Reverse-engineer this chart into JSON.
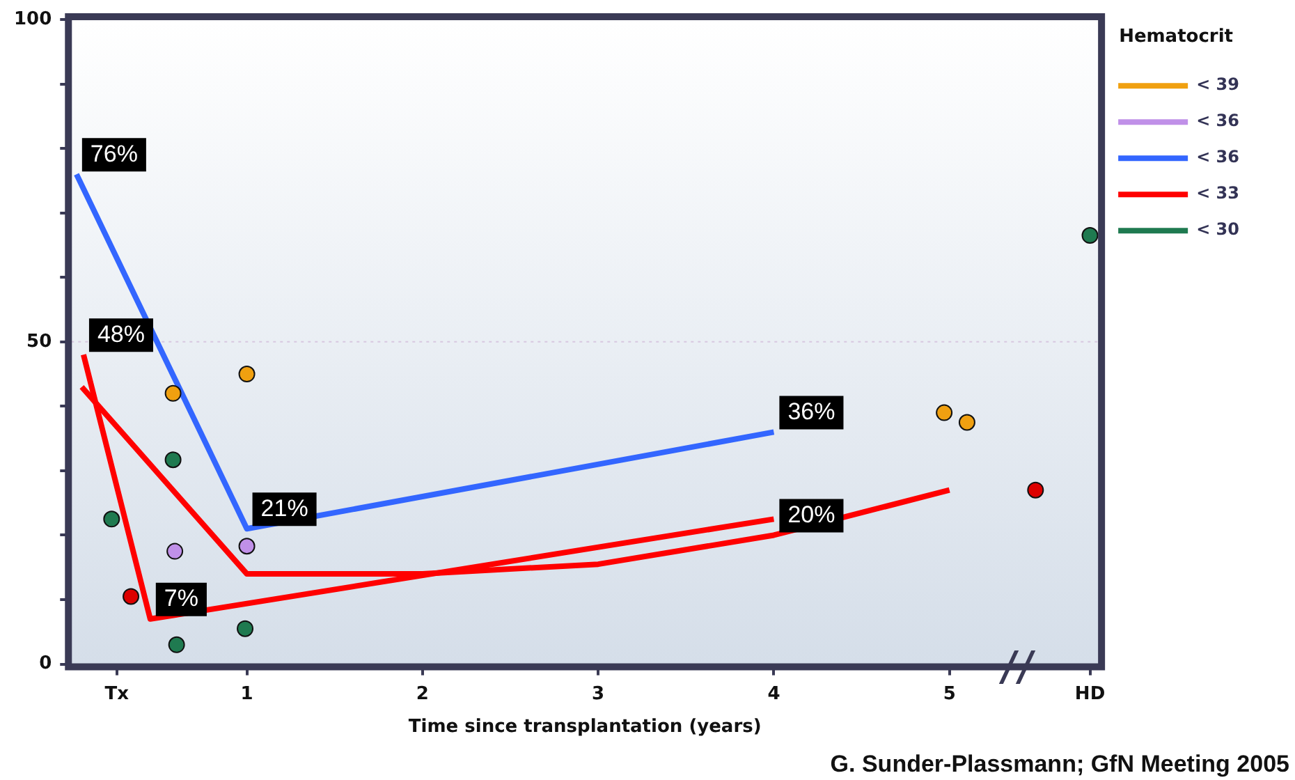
{
  "chart_data": {
    "type": "scatter",
    "xlabel": "Time since transplantation (years)",
    "legend_title": "Hematocrit",
    "legend": "top right",
    "grid": false,
    "xlim": [
      0,
      5.85
    ],
    "xticks": [
      {
        "value": 0.26,
        "label": "Tx"
      },
      1,
      2,
      3,
      4,
      5,
      {
        "value": 5.8,
        "label": "HD"
      }
    ],
    "ylim": [
      0,
      100
    ],
    "yticks": [
      0,
      {
        "value": 10,
        "label": null
      },
      {
        "value": 20,
        "label": null
      },
      {
        "value": 30,
        "label": null
      },
      {
        "value": 40,
        "label": null
      },
      50,
      {
        "value": 60,
        "label": null
      },
      {
        "value": 70,
        "label": null
      },
      {
        "value": 80,
        "label": null
      },
      {
        "value": 90,
        "label": null
      },
      100
    ],
    "series": [
      {
        "name": "< 39",
        "marker": "circle",
        "color": "#f0a010",
        "x": [
          0.58,
          1,
          4.97,
          5.1
        ],
        "values": [
          42,
          45,
          39,
          37.5
        ]
      },
      {
        "name": "< 36",
        "marker": "circle",
        "color": "#c090e8",
        "x": [
          0.59,
          1
        ],
        "values": [
          17.5,
          18.3
        ]
      },
      {
        "name": "< 36",
        "type": "line",
        "marker": "none",
        "color": "#3366ff",
        "x": [
          0.03,
          1,
          4
        ],
        "values": [
          76,
          21,
          36
        ]
      },
      {
        "name": "< 33",
        "type": "line",
        "marker": "none",
        "color": "#ff0000",
        "x": [
          0.07,
          0.45,
          4
        ],
        "values": [
          48,
          7,
          22.5
        ]
      },
      {
        "type": "line",
        "marker": "none",
        "color": "#ff0000",
        "x": [
          0.06,
          1,
          2,
          3,
          4,
          5
        ],
        "values": [
          43,
          14,
          14,
          15.5,
          20,
          27
        ]
      },
      {
        "marker": "circle",
        "color": "#dd0000",
        "x": [
          0.34,
          5.49
        ],
        "values": [
          10.5,
          27
        ]
      },
      {
        "name": "< 30",
        "marker": "circle",
        "color": "#1f7a50",
        "x": [
          0.23,
          0.58,
          0.6,
          0.99,
          5.8
        ],
        "values": [
          22.5,
          31.7,
          3,
          5.5,
          66.5
        ]
      }
    ],
    "ref_lines": [
      {
        "axis": "y",
        "value": 50,
        "color": "#d8c8e0",
        "line_style": "dotted"
      }
    ],
    "annotations": [
      {
        "text": "76%",
        "x": 0.03,
        "y": 76
      },
      {
        "text": "48%",
        "x": 0.07,
        "y": 48
      },
      {
        "text": "7%",
        "x": 0.45,
        "y": 7
      },
      {
        "text": "21%",
        "x": 1,
        "y": 21
      },
      {
        "text": "36%",
        "x": 4,
        "y": 36
      },
      {
        "text": "20%",
        "x": 4,
        "y": 20
      },
      "G. Sunder-Plassmann; GfN Meeting 2005"
    ]
  }
}
